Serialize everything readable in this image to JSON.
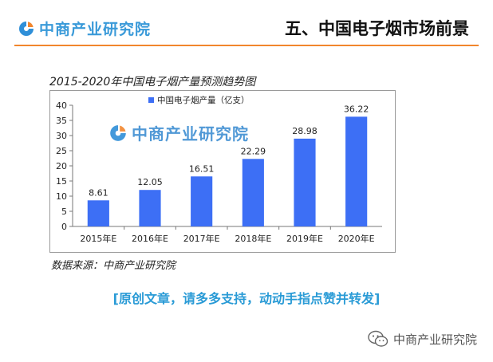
{
  "header": {
    "brand": "中商产业研究院",
    "section_title": "五、中国电子烟市场前景",
    "rule_color": "#f2862d"
  },
  "chart_data": {
    "type": "bar",
    "title": "2015-2020年中国电子烟产量预测趋势图",
    "categories": [
      "2015年E",
      "2016年E",
      "2017年E",
      "2018年E",
      "2019年E",
      "2020年E"
    ],
    "series": [
      {
        "name": "中国电子烟产量（亿支）",
        "values": [
          8.61,
          12.05,
          16.51,
          22.29,
          28.98,
          36.22
        ],
        "color": "#3d6ff5"
      }
    ],
    "data_labels": [
      "8.61",
      "12.05",
      "16.51",
      "22.29",
      "28.98",
      "36.22"
    ],
    "yticks": [
      0,
      5,
      10,
      15,
      20,
      25,
      30,
      35,
      40
    ],
    "ylim": [
      0,
      40
    ],
    "grid": false,
    "legend_position": "top"
  },
  "watermark": {
    "brand": "中商产业研究院"
  },
  "source": "数据来源：中商产业研究院",
  "notice": "[原创文章，请多多支持，动动手指点赞并转发]",
  "footer": {
    "brand": "中商产业研究院",
    "icon": "wechat-icon"
  },
  "colors": {
    "brand_blue": "#3a9ad9",
    "bar_blue": "#3d6ff5",
    "accent_orange": "#f2862d"
  }
}
